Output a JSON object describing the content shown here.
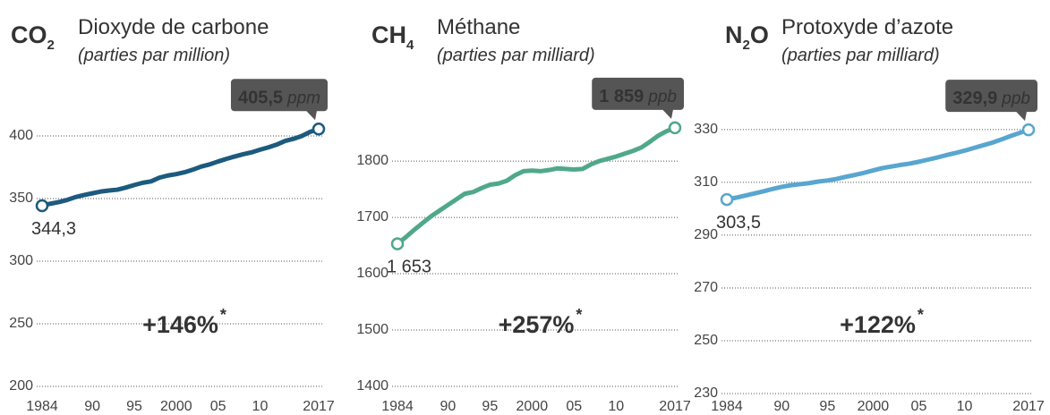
{
  "chart_data": [
    {
      "type": "line",
      "formula": [
        {
          "text": "CO"
        },
        {
          "text": "2",
          "sub": true
        }
      ],
      "title": "Dioxyde de carbone",
      "subtitle": "(parties par million)",
      "unit": "ppm",
      "change": {
        "value": 146,
        "label": "+146%"
      },
      "footnote_mark": "*",
      "x": [
        1984,
        1985,
        1986,
        1987,
        1988,
        1989,
        1990,
        1991,
        1992,
        1993,
        1994,
        1995,
        1996,
        1997,
        1998,
        1999,
        2000,
        2001,
        2002,
        2003,
        2004,
        2005,
        2006,
        2007,
        2008,
        2009,
        2010,
        2011,
        2012,
        2013,
        2014,
        2015,
        2016,
        2017
      ],
      "series": [
        {
          "color": "#1c5a7e",
          "values": [
            344.3,
            345.9,
            347.2,
            348.9,
            351.2,
            352.8,
            354.2,
            355.6,
            356.4,
            357.1,
            358.8,
            360.8,
            362.6,
            363.7,
            366.7,
            368.4,
            369.5,
            371.0,
            373.1,
            375.6,
            377.3,
            379.6,
            381.7,
            383.6,
            385.4,
            386.9,
            389.0,
            390.9,
            393.1,
            396.0,
            397.7,
            400.0,
            403.3,
            405.5
          ],
          "value_labels": [
            "344,3",
            null,
            null,
            null,
            null,
            null,
            null,
            null,
            null,
            null,
            null,
            null,
            null,
            null,
            null,
            null,
            null,
            null,
            null,
            null,
            null,
            null,
            null,
            null,
            null,
            null,
            null,
            null,
            null,
            null,
            null,
            null,
            null,
            "405,5"
          ]
        }
      ],
      "xlim": [
        1984,
        2017
      ],
      "xticks": [
        1984,
        {
          "value": 1990,
          "label": "90"
        },
        {
          "value": 1995,
          "label": "95"
        },
        2000,
        {
          "value": 2005,
          "label": "05"
        },
        {
          "value": 2010,
          "label": "10"
        },
        2017
      ],
      "ylim": [
        200,
        415
      ],
      "yticks": [
        200,
        250,
        300,
        350,
        400
      ],
      "grid": true
    },
    {
      "type": "line",
      "formula": [
        {
          "text": "CH"
        },
        {
          "text": "4",
          "sub": true
        }
      ],
      "title": "Méthane",
      "subtitle": "(parties par milliard)",
      "unit": "ppb",
      "change": {
        "value": 257,
        "label": "+257%"
      },
      "footnote_mark": "*",
      "x": [
        1984,
        1985,
        1986,
        1987,
        1988,
        1989,
        1990,
        1991,
        1992,
        1993,
        1994,
        1995,
        1996,
        1997,
        1998,
        1999,
        2000,
        2001,
        2002,
        2003,
        2004,
        2005,
        2006,
        2007,
        2008,
        2009,
        2010,
        2011,
        2012,
        2013,
        2014,
        2015,
        2016,
        2017
      ],
      "series": [
        {
          "color": "#4fa88a",
          "values": [
            1653,
            1665,
            1678,
            1690,
            1702,
            1712,
            1722,
            1732,
            1742,
            1745,
            1752,
            1758,
            1760,
            1765,
            1775,
            1782,
            1783,
            1782,
            1784,
            1787,
            1786,
            1785,
            1786,
            1794,
            1800,
            1804,
            1808,
            1813,
            1818,
            1824,
            1834,
            1845,
            1853,
            1859
          ],
          "value_labels": [
            "1 653",
            null,
            null,
            null,
            null,
            null,
            null,
            null,
            null,
            null,
            null,
            null,
            null,
            null,
            null,
            null,
            null,
            null,
            null,
            null,
            null,
            null,
            null,
            null,
            null,
            null,
            null,
            null,
            null,
            null,
            null,
            null,
            null,
            "1 859"
          ]
        }
      ],
      "xlim": [
        1984,
        2017
      ],
      "xticks": [
        1984,
        {
          "value": 1990,
          "label": "90"
        },
        {
          "value": 1995,
          "label": "95"
        },
        2000,
        {
          "value": 2005,
          "label": "05"
        },
        {
          "value": 2010,
          "label": "10"
        },
        2017
      ],
      "ylim": [
        1400,
        1870
      ],
      "yticks": [
        1400,
        1500,
        1600,
        1700,
        1800
      ],
      "grid": true
    },
    {
      "type": "line",
      "formula": [
        {
          "text": "N"
        },
        {
          "text": "2",
          "sub": true
        },
        {
          "text": "O"
        }
      ],
      "title": "Protoxyde d’azote",
      "subtitle": "(parties par milliard)",
      "unit": "ppb",
      "change": {
        "value": 122,
        "label": "+122%"
      },
      "footnote_mark": "*",
      "x": [
        1984,
        1985,
        1986,
        1987,
        1988,
        1989,
        1990,
        1991,
        1992,
        1993,
        1994,
        1995,
        1996,
        1997,
        1998,
        1999,
        2000,
        2001,
        2002,
        2003,
        2004,
        2005,
        2006,
        2007,
        2008,
        2009,
        2010,
        2011,
        2012,
        2013,
        2014,
        2015,
        2016,
        2017
      ],
      "series": [
        {
          "color": "#58a6d0",
          "values": [
            303.5,
            304.2,
            305.0,
            305.8,
            306.6,
            307.5,
            308.3,
            308.9,
            309.3,
            309.7,
            310.3,
            310.7,
            311.3,
            312.1,
            312.8,
            313.6,
            314.5,
            315.4,
            316.0,
            316.6,
            317.1,
            317.8,
            318.6,
            319.4,
            320.3,
            321.1,
            322.0,
            323.0,
            324.0,
            325.0,
            326.2,
            327.5,
            328.7,
            329.9
          ],
          "value_labels": [
            "303,5",
            null,
            null,
            null,
            null,
            null,
            null,
            null,
            null,
            null,
            null,
            null,
            null,
            null,
            null,
            null,
            null,
            null,
            null,
            null,
            null,
            null,
            null,
            null,
            null,
            null,
            null,
            null,
            null,
            null,
            null,
            null,
            null,
            "329,9"
          ]
        }
      ],
      "xlim": [
        1984,
        2017
      ],
      "xticks": [
        1984,
        {
          "value": 1990,
          "label": "90"
        },
        {
          "value": 1995,
          "label": "95"
        },
        2000,
        {
          "value": 2005,
          "label": "05"
        },
        {
          "value": 2010,
          "label": "10"
        },
        2017
      ],
      "ylim": [
        230,
        333
      ],
      "yticks": [
        230,
        250,
        270,
        290,
        310,
        330
      ],
      "grid": true
    }
  ]
}
